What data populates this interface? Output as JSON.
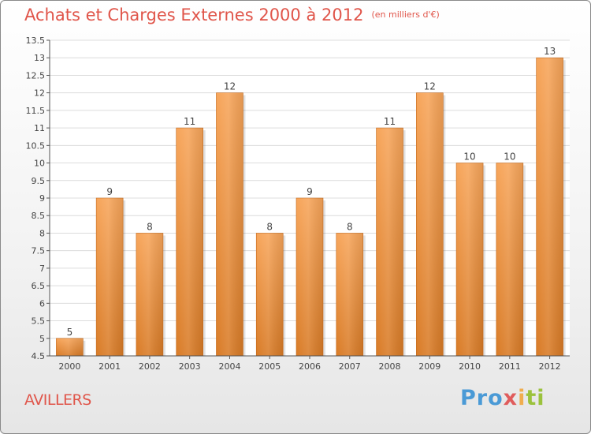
{
  "header": {
    "title": "Achats et Charges Externes 2000 à 2012",
    "subtitle": "(en milliers d'€)"
  },
  "footer": {
    "city": "AVILLERS",
    "logo_text": "Proxiti",
    "logo_colors": [
      "#4a9ad6",
      "#5cb85c",
      "#f0ad4e",
      "#e05c5c",
      "#9bc23c"
    ]
  },
  "chart_data": {
    "type": "bar",
    "title": "Achats et Charges Externes 2000 à 2012",
    "subtitle": "(en milliers d'€)",
    "xlabel": "",
    "ylabel": "",
    "categories": [
      "2000",
      "2001",
      "2002",
      "2003",
      "2004",
      "2005",
      "2006",
      "2007",
      "2008",
      "2009",
      "2010",
      "2011",
      "2012"
    ],
    "values": [
      5,
      9,
      8,
      11,
      12,
      8,
      9,
      8,
      11,
      12,
      10,
      10,
      13
    ],
    "data_labels": [
      "5",
      "9",
      "8",
      "11",
      "12",
      "8",
      "9",
      "8",
      "11",
      "12",
      "10",
      "10",
      "13"
    ],
    "ylim": [
      4.5,
      13.5
    ],
    "yticks": [
      "4.5",
      "5",
      "5.5",
      "6",
      "6.5",
      "7",
      "7.5",
      "8",
      "8.5",
      "9",
      "9.5",
      "10",
      "10.5",
      "11",
      "11.5",
      "12",
      "12.5",
      "13",
      "13.5"
    ],
    "grid": true,
    "bar_color_top": "#f7a55a",
    "bar_color_bottom": "#d97b26"
  }
}
